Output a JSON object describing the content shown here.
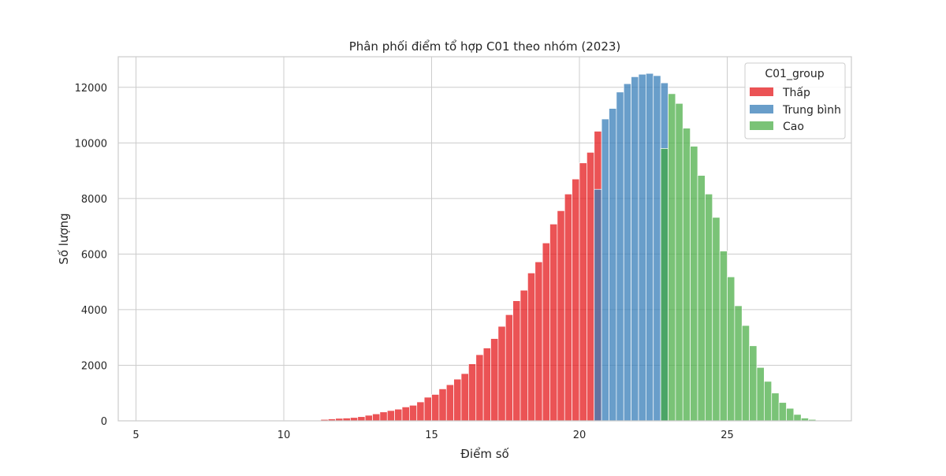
{
  "chart_data": {
    "type": "bar",
    "subtype": "stacked-histogram",
    "title": "Phân phối điểm tổ hợp C01 theo nhóm (2023)",
    "xlabel": "Điểm số",
    "ylabel": "Số lượng",
    "xlim": [
      4.4,
      29.2
    ],
    "ylim": [
      0,
      13100
    ],
    "xticks": [
      5,
      10,
      15,
      20,
      25
    ],
    "yticks": [
      0,
      2000,
      4000,
      6000,
      8000,
      10000,
      12000
    ],
    "bin_width": 0.25,
    "grid": true,
    "legend": {
      "title": "C01_group",
      "placement": "top-right"
    },
    "series": [
      {
        "name": "Thấp",
        "color": "#e41a1c",
        "bins": [
          [
            5.0,
            5
          ],
          [
            5.25,
            5
          ],
          [
            5.5,
            5
          ],
          [
            5.75,
            5
          ],
          [
            6.0,
            5
          ],
          [
            6.25,
            5
          ],
          [
            6.5,
            5
          ],
          [
            6.75,
            5
          ],
          [
            7.0,
            5
          ],
          [
            7.25,
            5
          ],
          [
            7.5,
            5
          ],
          [
            7.75,
            5
          ],
          [
            8.0,
            5
          ],
          [
            8.25,
            5
          ],
          [
            8.5,
            5
          ],
          [
            8.75,
            5
          ],
          [
            9.0,
            5
          ],
          [
            9.25,
            5
          ],
          [
            9.5,
            5
          ],
          [
            9.75,
            8
          ],
          [
            10.0,
            8
          ],
          [
            10.25,
            8
          ],
          [
            10.5,
            10
          ],
          [
            10.75,
            15
          ],
          [
            11.0,
            20
          ],
          [
            11.25,
            50
          ],
          [
            11.5,
            70
          ],
          [
            11.75,
            90
          ],
          [
            12.0,
            100
          ],
          [
            12.25,
            120
          ],
          [
            12.5,
            150
          ],
          [
            12.75,
            200
          ],
          [
            13.0,
            250
          ],
          [
            13.25,
            320
          ],
          [
            13.5,
            370
          ],
          [
            13.75,
            420
          ],
          [
            14.0,
            500
          ],
          [
            14.25,
            560
          ],
          [
            14.5,
            680
          ],
          [
            14.75,
            850
          ],
          [
            15.0,
            950
          ],
          [
            15.25,
            1150
          ],
          [
            15.5,
            1300
          ],
          [
            15.75,
            1500
          ],
          [
            16.0,
            1700
          ],
          [
            16.25,
            2050
          ],
          [
            16.5,
            2380
          ],
          [
            16.75,
            2620
          ],
          [
            17.0,
            2960
          ],
          [
            17.25,
            3400
          ],
          [
            17.5,
            3820
          ],
          [
            17.75,
            4320
          ],
          [
            18.0,
            4700
          ],
          [
            18.25,
            5320
          ],
          [
            18.5,
            5720
          ],
          [
            18.75,
            6400
          ],
          [
            19.0,
            7080
          ],
          [
            19.25,
            7560
          ],
          [
            19.5,
            8160
          ],
          [
            19.75,
            8700
          ],
          [
            20.0,
            9280
          ],
          [
            20.25,
            9660
          ],
          [
            20.5,
            10420
          ]
        ]
      },
      {
        "name": "Trung bình",
        "color": "#377eb8",
        "bins": [
          [
            20.5,
            8330
          ],
          [
            20.75,
            10860
          ],
          [
            21.0,
            11240
          ],
          [
            21.25,
            11830
          ],
          [
            21.5,
            12130
          ],
          [
            21.75,
            12380
          ],
          [
            22.0,
            12470
          ],
          [
            22.25,
            12500
          ],
          [
            22.5,
            12420
          ],
          [
            22.75,
            12160
          ],
          [
            22.75,
            9800
          ]
        ]
      },
      {
        "name": "Cao",
        "color": "#4daf4a",
        "bins": [
          [
            22.75,
            9800
          ],
          [
            23.0,
            11770
          ],
          [
            23.25,
            11420
          ],
          [
            23.5,
            10530
          ],
          [
            23.75,
            9880
          ],
          [
            24.0,
            8830
          ],
          [
            24.25,
            8160
          ],
          [
            24.5,
            7320
          ],
          [
            24.75,
            6110
          ],
          [
            25.0,
            5180
          ],
          [
            25.25,
            4140
          ],
          [
            25.5,
            3430
          ],
          [
            25.75,
            2700
          ],
          [
            26.0,
            1920
          ],
          [
            26.25,
            1420
          ],
          [
            26.5,
            1000
          ],
          [
            26.75,
            660
          ],
          [
            27.0,
            450
          ],
          [
            27.25,
            230
          ],
          [
            27.5,
            100
          ],
          [
            27.75,
            50
          ],
          [
            28.0,
            20
          ],
          [
            28.25,
            10
          ],
          [
            28.5,
            5
          ],
          [
            28.75,
            3
          ]
        ]
      }
    ]
  }
}
